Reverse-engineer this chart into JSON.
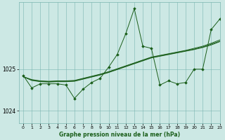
{
  "background_color": "#cce8e4",
  "grid_color": "#7ab5b0",
  "line_color": "#1a5e1a",
  "xlabel": "Graphe pression niveau de la mer (hPa)",
  "ylim": [
    1023.7,
    1026.6
  ],
  "xlim": [
    -0.5,
    23
  ],
  "yticks": [
    1024,
    1025
  ],
  "xticks": [
    0,
    1,
    2,
    3,
    4,
    5,
    6,
    7,
    8,
    9,
    10,
    11,
    12,
    13,
    14,
    15,
    16,
    17,
    18,
    19,
    20,
    21,
    22,
    23
  ],
  "series_jagged": [
    1024.85,
    1024.55,
    1024.65,
    1024.65,
    1024.65,
    1024.62,
    1024.3,
    1024.52,
    1024.68,
    1024.78,
    1025.05,
    1025.35,
    1025.85,
    1026.45,
    1025.55,
    1025.5,
    1024.62,
    1024.72,
    1024.65,
    1024.68,
    1025.0,
    1025.0,
    1025.95,
    1026.2
  ],
  "series_smooth1": [
    1024.82,
    1024.75,
    1024.72,
    1024.71,
    1024.72,
    1024.72,
    1024.73,
    1024.78,
    1024.83,
    1024.88,
    1024.94,
    1025.01,
    1025.08,
    1025.15,
    1025.22,
    1025.29,
    1025.33,
    1025.37,
    1025.41,
    1025.45,
    1025.5,
    1025.55,
    1025.62,
    1025.7
  ],
  "series_smooth2": [
    1024.82,
    1024.74,
    1024.71,
    1024.7,
    1024.71,
    1024.71,
    1024.72,
    1024.77,
    1024.82,
    1024.87,
    1024.93,
    1025.0,
    1025.07,
    1025.14,
    1025.21,
    1025.28,
    1025.32,
    1025.36,
    1025.4,
    1025.44,
    1025.48,
    1025.53,
    1025.6,
    1025.67
  ],
  "series_smooth3": [
    1024.82,
    1024.73,
    1024.7,
    1024.69,
    1024.7,
    1024.7,
    1024.71,
    1024.76,
    1024.81,
    1024.86,
    1024.92,
    1024.99,
    1025.06,
    1025.13,
    1025.2,
    1025.27,
    1025.31,
    1025.35,
    1025.39,
    1025.43,
    1025.47,
    1025.52,
    1025.58,
    1025.66
  ]
}
